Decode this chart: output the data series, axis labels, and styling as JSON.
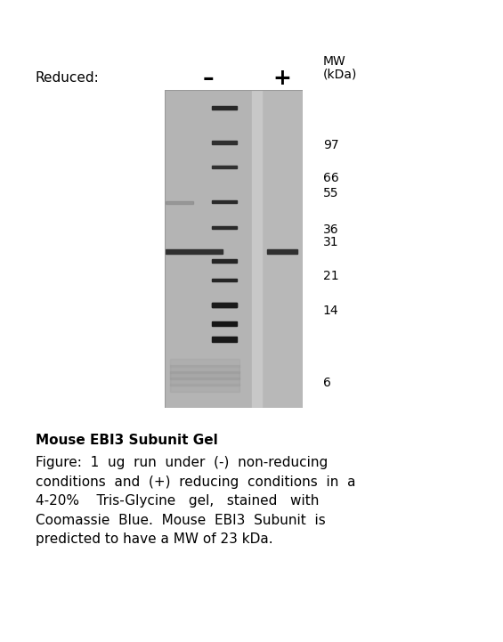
{
  "title": "Mouse EBI3 Subunit Gel",
  "mw_ticks": [
    97,
    66,
    55,
    36,
    31,
    21,
    14,
    6
  ],
  "figure_width": 5.65,
  "figure_height": 7.21,
  "gel_bg": "#b8b8b8",
  "lane_left_bg": "#b4b4b4",
  "lane_right_bg": "#b8b8b8",
  "gap_color": "#c8c8c8",
  "band_color_dark": "#2a2a2a",
  "band_color_mid": "#383838",
  "band_color_sample": "#303030",
  "smear_color": "#909090",
  "caption_title": "Mouse EBI3 Subunit Gel",
  "caption_body": "Figure:  1  ug  run  under  (-)  non-reducing\nconditions  and  (+)  reducing  conditions  in  a\n4-20%    Tris-Glycine   gel,   stained   with\nCoomassie  Blue.  Mouse  EBI3  Subunit  is\npredicted to have a MW of 23 kDa."
}
